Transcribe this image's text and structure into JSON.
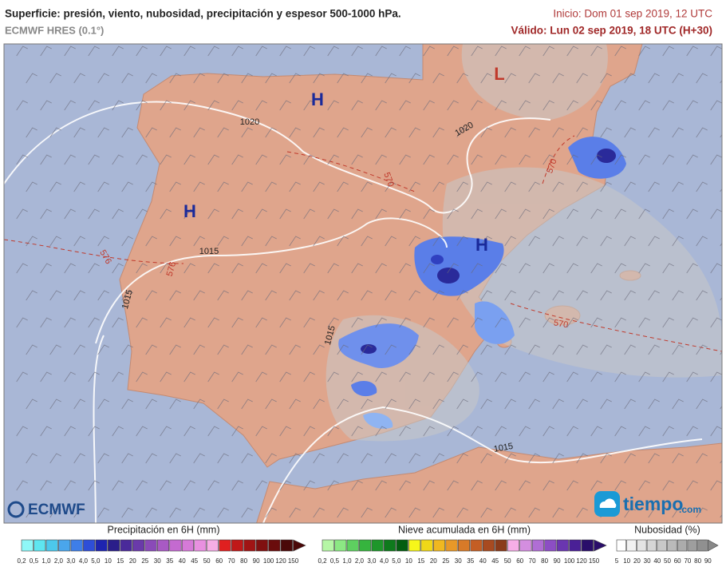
{
  "header": {
    "title": "Superficie: presión, viento, nubosidad, precipitación y espesor 500-1000 hPa.",
    "model": "ECMWF HRES (0.1°)",
    "init": "Inicio: Dom 01 sep 2019, 12 UTC",
    "valid": "Válido: Lun 02 sep 2019, 18 UTC (H+30)"
  },
  "map": {
    "pressure_centers": [
      "H",
      "H",
      "H",
      "L"
    ],
    "isobar_labels": [
      "1020",
      "1020",
      "1015",
      "1015",
      "1015",
      "1015"
    ],
    "thickness_labels": [
      "576",
      "576",
      "570",
      "570",
      "570"
    ]
  },
  "logos": {
    "left": "ECMWF",
    "right_main": "tiempo",
    "right_suffix": ".com"
  },
  "legends": [
    {
      "title": "Precipitación en 6H (mm)",
      "labels": [
        "0,2",
        "0,5",
        "1,0",
        "2,0",
        "3,0",
        "4,0",
        "5,0",
        "10",
        "15",
        "20",
        "25",
        "30",
        "35",
        "40",
        "45",
        "50",
        "60",
        "70",
        "80",
        "90",
        "100",
        "120",
        "150"
      ]
    },
    {
      "title": "Nieve acumulada en 6H (mm)",
      "labels": [
        "0,2",
        "0,5",
        "1,0",
        "2,0",
        "3,0",
        "4,0",
        "5,0",
        "10",
        "15",
        "20",
        "25",
        "30",
        "35",
        "40",
        "45",
        "50",
        "60",
        "70",
        "80",
        "90",
        "100",
        "120",
        "150"
      ]
    },
    {
      "title": "Nubosidad (%)",
      "labels": [
        "5",
        "10",
        "20",
        "30",
        "40",
        "50",
        "60",
        "70",
        "80",
        "90"
      ]
    }
  ]
}
